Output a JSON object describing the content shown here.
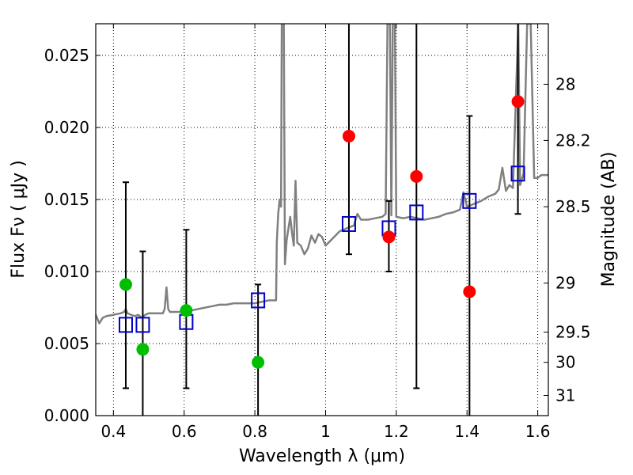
{
  "chart_data": {
    "type": "scatter",
    "xlabel": "Wavelength  λ (μm)",
    "ylabel": "Flux  Fν  ( μJy )",
    "ylabel_right": "Magnitude (AB)",
    "xlim": [
      0.35,
      1.63
    ],
    "ylim": [
      0.0,
      0.0272
    ],
    "grid": true,
    "x_ticks": [
      0.4,
      0.6,
      0.8,
      1.0,
      1.2,
      1.4,
      1.6
    ],
    "x_tick_labels": [
      "0.4",
      "0.6",
      "0.8",
      "1",
      "1.2",
      "1.4",
      "1.6"
    ],
    "y_ticks": [
      0.0,
      0.005,
      0.01,
      0.015,
      0.02,
      0.025
    ],
    "y_tick_labels": [
      "0.000",
      "0.005",
      "0.010",
      "0.015",
      "0.020",
      "0.025"
    ],
    "right_ticks": [
      {
        "label": "28",
        "flux": 0.023
      },
      {
        "label": "28.2",
        "flux": 0.0191
      },
      {
        "label": "28.5",
        "flux": 0.0145
      },
      {
        "label": "29",
        "flux": 0.0092
      },
      {
        "label": "29.5",
        "flux": 0.0058
      },
      {
        "label": "30",
        "flux": 0.0037
      },
      {
        "label": "31",
        "flux": 0.0014
      }
    ],
    "colors": {
      "model": "#808080",
      "green": "#00bf00",
      "red": "#ff0000",
      "square": "#0000cc",
      "errorbar": "#000000"
    },
    "series": [
      {
        "name": "model-sed",
        "style": "line",
        "points": [
          [
            0.35,
            0.007
          ],
          [
            0.36,
            0.0064
          ],
          [
            0.37,
            0.0068
          ],
          [
            0.38,
            0.0069
          ],
          [
            0.4,
            0.007
          ],
          [
            0.42,
            0.0071
          ],
          [
            0.43,
            0.0072
          ],
          [
            0.435,
            0.0074
          ],
          [
            0.44,
            0.0071
          ],
          [
            0.45,
            0.007
          ],
          [
            0.46,
            0.0069
          ],
          [
            0.47,
            0.007
          ],
          [
            0.48,
            0.0068
          ],
          [
            0.49,
            0.007
          ],
          [
            0.5,
            0.0071
          ],
          [
            0.52,
            0.0071
          ],
          [
            0.54,
            0.0071
          ],
          [
            0.545,
            0.0074
          ],
          [
            0.55,
            0.0089
          ],
          [
            0.555,
            0.0074
          ],
          [
            0.56,
            0.0072
          ],
          [
            0.58,
            0.0072
          ],
          [
            0.6,
            0.0072
          ],
          [
            0.62,
            0.0073
          ],
          [
            0.64,
            0.0074
          ],
          [
            0.66,
            0.0075
          ],
          [
            0.68,
            0.0076
          ],
          [
            0.7,
            0.0077
          ],
          [
            0.72,
            0.0077
          ],
          [
            0.74,
            0.0078
          ],
          [
            0.76,
            0.0078
          ],
          [
            0.78,
            0.0078
          ],
          [
            0.8,
            0.0078
          ],
          [
            0.82,
            0.0079
          ],
          [
            0.84,
            0.008
          ],
          [
            0.86,
            0.008
          ],
          [
            0.862,
            0.012
          ],
          [
            0.866,
            0.014
          ],
          [
            0.87,
            0.015
          ],
          [
            0.874,
            0.0145
          ],
          [
            0.876,
            0.0272
          ],
          [
            0.882,
            0.0272
          ],
          [
            0.885,
            0.0105
          ],
          [
            0.89,
            0.0122
          ],
          [
            0.9,
            0.0138
          ],
          [
            0.905,
            0.0127
          ],
          [
            0.91,
            0.0118
          ],
          [
            0.915,
            0.0163
          ],
          [
            0.92,
            0.012
          ],
          [
            0.93,
            0.0118
          ],
          [
            0.94,
            0.0112
          ],
          [
            0.95,
            0.0116
          ],
          [
            0.96,
            0.0125
          ],
          [
            0.97,
            0.012
          ],
          [
            0.98,
            0.0126
          ],
          [
            0.99,
            0.0124
          ],
          [
            1.0,
            0.0118
          ],
          [
            1.02,
            0.0123
          ],
          [
            1.04,
            0.0128
          ],
          [
            1.06,
            0.013
          ],
          [
            1.08,
            0.0132
          ],
          [
            1.09,
            0.014
          ],
          [
            1.1,
            0.0136
          ],
          [
            1.12,
            0.0136
          ],
          [
            1.14,
            0.0137
          ],
          [
            1.16,
            0.0138
          ],
          [
            1.17,
            0.014
          ],
          [
            1.175,
            0.0272
          ],
          [
            1.182,
            0.0272
          ],
          [
            1.186,
            0.0139
          ],
          [
            1.19,
            0.0272
          ],
          [
            1.196,
            0.0272
          ],
          [
            1.2,
            0.0138
          ],
          [
            1.22,
            0.0137
          ],
          [
            1.24,
            0.0138
          ],
          [
            1.26,
            0.0137
          ],
          [
            1.28,
            0.0136
          ],
          [
            1.3,
            0.0137
          ],
          [
            1.32,
            0.0138
          ],
          [
            1.34,
            0.014
          ],
          [
            1.36,
            0.0141
          ],
          [
            1.38,
            0.0143
          ],
          [
            1.39,
            0.0155
          ],
          [
            1.4,
            0.0145
          ],
          [
            1.42,
            0.0147
          ],
          [
            1.44,
            0.0149
          ],
          [
            1.46,
            0.0152
          ],
          [
            1.48,
            0.0154
          ],
          [
            1.49,
            0.0157
          ],
          [
            1.5,
            0.0172
          ],
          [
            1.51,
            0.0156
          ],
          [
            1.52,
            0.016
          ],
          [
            1.53,
            0.0158
          ],
          [
            1.545,
            0.0272
          ],
          [
            1.55,
            0.016
          ],
          [
            1.56,
            0.0168
          ],
          [
            1.57,
            0.0272
          ],
          [
            1.58,
            0.0272
          ],
          [
            1.59,
            0.0165
          ],
          [
            1.6,
            0.0165
          ],
          [
            1.61,
            0.0167
          ],
          [
            1.63,
            0.0167
          ]
        ]
      },
      {
        "name": "green-points",
        "style": "circle",
        "points": [
          [
            0.435,
            0.0091
          ],
          [
            0.483,
            0.0046
          ],
          [
            0.606,
            0.0073
          ],
          [
            0.809,
            0.0037
          ]
        ]
      },
      {
        "name": "red-points",
        "style": "circle",
        "points": [
          [
            1.066,
            0.0194
          ],
          [
            1.179,
            0.0124
          ],
          [
            1.257,
            0.0166
          ],
          [
            1.407,
            0.0086
          ],
          [
            1.544,
            0.0218
          ]
        ]
      },
      {
        "name": "model-bandpass",
        "style": "open-square",
        "points": [
          [
            0.435,
            0.0063
          ],
          [
            0.483,
            0.0063
          ],
          [
            0.606,
            0.0065
          ],
          [
            0.809,
            0.008
          ],
          [
            1.066,
            0.0133
          ],
          [
            1.179,
            0.013
          ],
          [
            1.257,
            0.0141
          ],
          [
            1.407,
            0.0149
          ],
          [
            1.544,
            0.0168
          ]
        ]
      },
      {
        "name": "error-bars",
        "style": "errorbar",
        "bars": [
          {
            "x": 0.435,
            "low": 0.0019,
            "high": 0.0162
          },
          {
            "x": 0.483,
            "low": 0.0,
            "high": 0.0114
          },
          {
            "x": 0.606,
            "low": 0.0019,
            "high": 0.0129
          },
          {
            "x": 0.809,
            "low": 0.0,
            "high": 0.0091
          },
          {
            "x": 1.066,
            "low": 0.0112,
            "high": 0.0272
          },
          {
            "x": 1.179,
            "low": 0.01,
            "high": 0.0149
          },
          {
            "x": 1.257,
            "low": 0.0019,
            "high": 0.0272
          },
          {
            "x": 1.407,
            "low": 0.0,
            "high": 0.0208
          },
          {
            "x": 1.544,
            "low": 0.014,
            "high": 0.0272
          }
        ]
      }
    ]
  }
}
